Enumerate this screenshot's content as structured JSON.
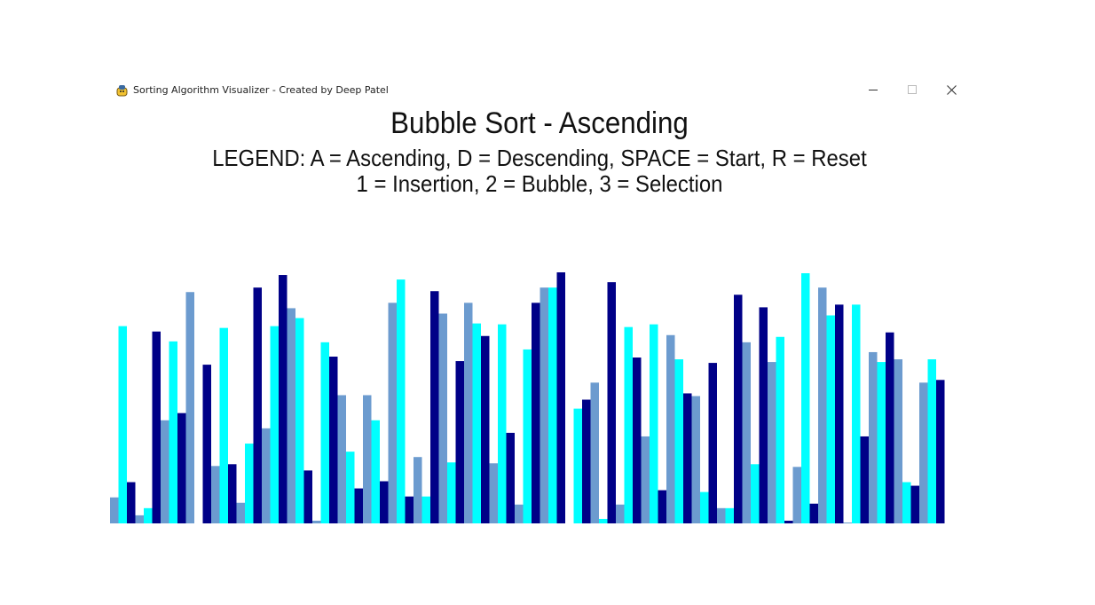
{
  "window": {
    "title": "Sorting Algorithm Visualizer - Created by Deep Patel",
    "controls": {
      "minimize_icon": "minimize-icon",
      "maximize_icon": "maximize-icon",
      "close_icon": "close-icon"
    }
  },
  "header": {
    "title": "Bubble Sort - Ascending",
    "legend_line1": "LEGEND: A = Ascending, D = Descending, SPACE = Start, R = Reset",
    "legend_line2": "1 = Insertion, 2 = Bubble, 3 = Selection"
  },
  "colors": {
    "navy": "#000087",
    "cyan": "#00ffff",
    "steel": "#6c9bcf"
  },
  "chart_data": {
    "type": "bar",
    "palette_cycle": [
      "steel",
      "cyan",
      "navy"
    ],
    "values": [
      29,
      220,
      46,
      9,
      17,
      214,
      115,
      203,
      123,
      258,
      0,
      177,
      64,
      218,
      66,
      23,
      89,
      263,
      106,
      220,
      277,
      240,
      229,
      59,
      3,
      202,
      186,
      143,
      80,
      39,
      143,
      115,
      47,
      246,
      272,
      30,
      74,
      30,
      259,
      234,
      68,
      181,
      246,
      223,
      209,
      67,
      222,
      101,
      21,
      194,
      246,
      263,
      263,
      280,
      0,
      128,
      138,
      157,
      5,
      269,
      21,
      219,
      185,
      97,
      222,
      37,
      210,
      183,
      145,
      142,
      35,
      179,
      17,
      17,
      255,
      202,
      66,
      241,
      180,
      208,
      3,
      63,
      279,
      22,
      263,
      232,
      244,
      1,
      244,
      97,
      191,
      180,
      213,
      183,
      46,
      42,
      157,
      183,
      160
    ],
    "ylim": [
      0,
      280
    ]
  }
}
